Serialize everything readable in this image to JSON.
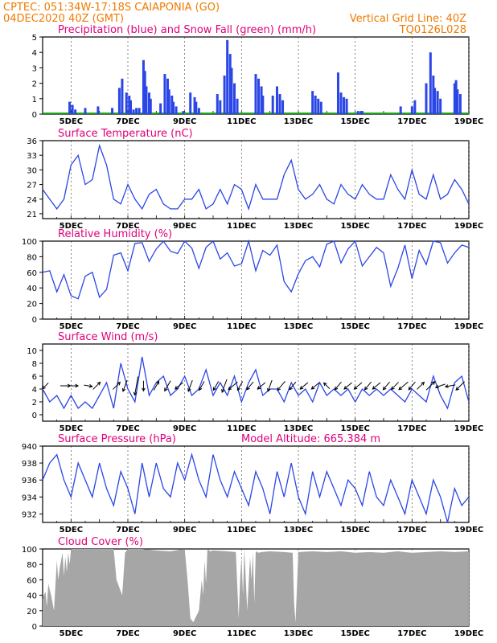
{
  "header": {
    "line1": "CPTEC:   051:34W-17:18S   CAIAPONIA (GO)",
    "line2_left": "04DEC2020 40Z (GMT)",
    "line2_right": "Vertical Grid Line: 40Z",
    "code": "TQ0126L028"
  },
  "colors": {
    "header": "#f07a00",
    "title": "#e0007a",
    "line": "#2b46e6",
    "precip": "#2b46e6",
    "snow": "#1aa81a",
    "cloud": "#a6a6a6",
    "wind": "#000000"
  },
  "x_labels": [
    "5DEC",
    "7DEC",
    "9DEC",
    "11DEC",
    "13DEC",
    "15DEC",
    "17DEC",
    "19DEC"
  ],
  "chart_data": [
    {
      "id": "precip",
      "type": "bar",
      "title": "Precipitation (blue) and Snow Fall (green) (mm/h)",
      "ylim": [
        0,
        5
      ],
      "yticks": [
        0,
        1,
        2,
        3,
        4,
        5
      ],
      "x_days": [
        4.95,
        5.05,
        5.15,
        5.5,
        5.95,
        6.45,
        6.7,
        6.8,
        6.95,
        7.05,
        7.1,
        7.2,
        7.3,
        7.4,
        7.55,
        7.6,
        7.65,
        7.75,
        7.8,
        8.15,
        8.3,
        8.4,
        8.45,
        8.55,
        8.6,
        8.7,
        8.95,
        9.2,
        9.35,
        9.4,
        9.5,
        10.15,
        10.25,
        10.4,
        10.5,
        10.6,
        10.65,
        10.75,
        10.85,
        11.5,
        11.6,
        11.7,
        11.75,
        12.1,
        12.25,
        12.35,
        12.45,
        13.5,
        13.6,
        13.7,
        13.8,
        14.4,
        14.5,
        14.6,
        14.7,
        15.1,
        15.2,
        15.25,
        16.6,
        17.0,
        17.1,
        17.5,
        17.65,
        17.75,
        17.8,
        17.9,
        18.0,
        18.5,
        18.55,
        18.6,
        18.7
      ],
      "values": [
        0.8,
        0.6,
        0.3,
        0.4,
        0.5,
        0.4,
        1.7,
        2.3,
        1.4,
        1.2,
        0.9,
        0.3,
        0.4,
        0.4,
        3.5,
        2.8,
        1.8,
        1.4,
        1.0,
        0.7,
        2.6,
        2.3,
        1.6,
        1.2,
        0.8,
        0.5,
        0.2,
        1.4,
        1.1,
        0.8,
        0.4,
        1.3,
        0.9,
        2.5,
        4.8,
        3.9,
        3.0,
        2.0,
        1.0,
        2.6,
        2.3,
        1.8,
        1.2,
        1.2,
        1.8,
        1.3,
        0.9,
        1.5,
        1.2,
        1.0,
        0.8,
        2.7,
        1.4,
        1.1,
        1.0,
        0.2,
        0.2,
        0.2,
        0.5,
        0.5,
        0.9,
        2.0,
        4.0,
        2.5,
        1.7,
        1.5,
        1.0,
        2.0,
        2.2,
        1.6,
        1.3
      ]
    },
    {
      "id": "temp",
      "type": "line",
      "title": "Surface Temperature (nC)",
      "ylim": [
        20,
        36
      ],
      "yticks": [
        21,
        24,
        27,
        30,
        33,
        36
      ],
      "x_days": [
        4.0,
        4.25,
        4.5,
        4.75,
        5.0,
        5.25,
        5.5,
        5.75,
        6.0,
        6.25,
        6.5,
        6.75,
        7.0,
        7.25,
        7.5,
        7.75,
        8.0,
        8.25,
        8.5,
        8.75,
        9.0,
        9.25,
        9.5,
        9.75,
        10.0,
        10.25,
        10.5,
        10.75,
        11.0,
        11.25,
        11.5,
        11.75,
        12.0,
        12.25,
        12.5,
        12.75,
        13.0,
        13.25,
        13.5,
        13.75,
        14.0,
        14.25,
        14.5,
        14.75,
        15.0,
        15.25,
        15.5,
        15.75,
        16.0,
        16.25,
        16.5,
        16.75,
        17.0,
        17.25,
        17.5,
        17.75,
        18.0,
        18.25,
        18.5,
        18.75,
        19.0
      ],
      "values": [
        26,
        24,
        22,
        24,
        31,
        33,
        27,
        28,
        35,
        31,
        24,
        23,
        27,
        24,
        22,
        25,
        26,
        23,
        22,
        22,
        24,
        24,
        26,
        22,
        23,
        26,
        23,
        27,
        26,
        22,
        27,
        24,
        24,
        24,
        29,
        32,
        26,
        24,
        25,
        27,
        24,
        23,
        27,
        25,
        24,
        27,
        25,
        24,
        24,
        29,
        26,
        24,
        30,
        25,
        24,
        29,
        24,
        25,
        28,
        26,
        23
      ]
    },
    {
      "id": "rh",
      "type": "line",
      "title": "Relative Humidity (%)",
      "ylim": [
        0,
        100
      ],
      "yticks": [
        0,
        20,
        40,
        60,
        80,
        100
      ],
      "x_days": [
        4.0,
        4.25,
        4.5,
        4.75,
        5.0,
        5.25,
        5.5,
        5.75,
        6.0,
        6.25,
        6.5,
        6.75,
        7.0,
        7.25,
        7.5,
        7.75,
        8.0,
        8.25,
        8.5,
        8.75,
        9.0,
        9.25,
        9.5,
        9.75,
        10.0,
        10.25,
        10.5,
        10.75,
        11.0,
        11.25,
        11.5,
        11.75,
        12.0,
        12.25,
        12.5,
        12.75,
        13.0,
        13.25,
        13.5,
        13.75,
        14.0,
        14.25,
        14.5,
        14.75,
        15.0,
        15.25,
        15.5,
        15.75,
        16.0,
        16.25,
        16.5,
        16.75,
        17.0,
        17.25,
        17.5,
        17.75,
        18.0,
        18.25,
        18.5,
        18.75,
        19.0
      ],
      "values": [
        60,
        62,
        35,
        57,
        30,
        26,
        55,
        60,
        28,
        38,
        82,
        85,
        62,
        97,
        98,
        74,
        90,
        100,
        87,
        84,
        100,
        91,
        65,
        92,
        100,
        77,
        85,
        68,
        71,
        100,
        62,
        88,
        82,
        95,
        48,
        35,
        58,
        75,
        80,
        67,
        96,
        100,
        72,
        90,
        100,
        68,
        80,
        92,
        85,
        42,
        65,
        95,
        52,
        88,
        70,
        100,
        98,
        72,
        85,
        95,
        92
      ]
    },
    {
      "id": "wind",
      "type": "line",
      "title": "Surface Wind (m/s)",
      "ylim": [
        -1,
        11
      ],
      "yticks": [
        0,
        2,
        4,
        6,
        8,
        10
      ],
      "x_days": [
        4.0,
        4.25,
        4.5,
        4.75,
        5.0,
        5.25,
        5.5,
        5.75,
        6.0,
        6.25,
        6.5,
        6.75,
        7.0,
        7.25,
        7.5,
        7.75,
        8.0,
        8.25,
        8.5,
        8.75,
        9.0,
        9.25,
        9.5,
        9.75,
        10.0,
        10.25,
        10.5,
        10.75,
        11.0,
        11.25,
        11.5,
        11.75,
        12.0,
        12.25,
        12.5,
        12.75,
        13.0,
        13.25,
        13.5,
        13.75,
        14.0,
        14.25,
        14.5,
        14.75,
        15.0,
        15.25,
        15.5,
        15.75,
        16.0,
        16.25,
        16.5,
        16.75,
        17.0,
        17.25,
        17.5,
        17.75,
        18.0,
        18.25,
        18.5,
        18.75,
        19.0
      ],
      "values": [
        4,
        2,
        3,
        1,
        3,
        1,
        2,
        1,
        3,
        5,
        1,
        8,
        4,
        2,
        9,
        3,
        5,
        6,
        3,
        4,
        6,
        3,
        4,
        7,
        3,
        5,
        3,
        6,
        2,
        5,
        7,
        3,
        4,
        4,
        2,
        5,
        3,
        4,
        2,
        5,
        3,
        4,
        3,
        4,
        2,
        4,
        3,
        4,
        3,
        4,
        3,
        2,
        4,
        3,
        2,
        6,
        3,
        1,
        5,
        6,
        2
      ],
      "arrow_days": [
        4.1,
        4.8,
        5.1,
        5.6,
        5.9,
        6.6,
        6.9,
        7.3,
        7.55,
        8.0,
        8.4,
        8.8,
        9.2,
        9.6,
        10.1,
        10.4,
        10.7,
        10.95,
        11.3,
        11.7,
        12.0,
        12.4,
        12.8,
        13.2,
        13.6,
        14.0,
        14.4,
        14.75,
        15.1,
        15.45,
        15.75,
        16.1,
        16.4,
        16.7,
        17.0,
        17.3,
        17.65,
        18.0,
        18.35,
        18.7
      ],
      "arrow_speed": [
        2,
        3,
        2,
        2,
        3,
        3,
        4,
        8,
        3,
        3,
        4,
        3,
        4,
        3,
        3,
        5,
        4,
        3,
        3,
        3,
        4,
        4,
        3,
        3,
        3,
        2,
        3,
        3,
        3,
        3,
        3,
        3,
        3,
        4,
        3,
        3,
        4,
        3,
        3,
        4
      ],
      "arrow_dir_deg": [
        225,
        90,
        90,
        100,
        45,
        45,
        200,
        190,
        180,
        30,
        210,
        230,
        200,
        210,
        210,
        200,
        230,
        210,
        220,
        230,
        200,
        220,
        220,
        230,
        230,
        315,
        220,
        230,
        230,
        220,
        230,
        220,
        225,
        230,
        220,
        45,
        45,
        250,
        260,
        225
      ]
    },
    {
      "id": "press",
      "type": "line",
      "title": "Surface Pressure (hPa)",
      "subtitle": "Model Altitude: 665.384 m",
      "ylim": [
        931,
        940
      ],
      "yticks": [
        932,
        934,
        936,
        938,
        940
      ],
      "x_days": [
        4.0,
        4.25,
        4.5,
        4.75,
        5.0,
        5.25,
        5.5,
        5.75,
        6.0,
        6.25,
        6.5,
        6.75,
        7.0,
        7.25,
        7.5,
        7.75,
        8.0,
        8.25,
        8.5,
        8.75,
        9.0,
        9.25,
        9.5,
        9.75,
        10.0,
        10.25,
        10.5,
        10.75,
        11.0,
        11.25,
        11.5,
        11.75,
        12.0,
        12.25,
        12.5,
        12.75,
        13.0,
        13.25,
        13.5,
        13.75,
        14.0,
        14.25,
        14.5,
        14.75,
        15.0,
        15.25,
        15.5,
        15.75,
        16.0,
        16.25,
        16.5,
        16.75,
        17.0,
        17.25,
        17.5,
        17.75,
        18.0,
        18.25,
        18.5,
        18.75,
        19.0
      ],
      "values": [
        936,
        938,
        939,
        936,
        934,
        938,
        936,
        934,
        938,
        935,
        933,
        937,
        935,
        932,
        938,
        934,
        938,
        935,
        934,
        938,
        936,
        939,
        936,
        934,
        939,
        936,
        934,
        937,
        935,
        933,
        937,
        935,
        932,
        937,
        934,
        938,
        934,
        932,
        937,
        934,
        937,
        935,
        933,
        936,
        935,
        933,
        937,
        934,
        933,
        936,
        934,
        932,
        936,
        934,
        932,
        936,
        934,
        931,
        935,
        933,
        934
      ]
    },
    {
      "id": "cloud",
      "type": "area",
      "title": "Cloud Cover (%)",
      "ylim": [
        0,
        100
      ],
      "yticks": [
        0,
        20,
        40,
        60,
        80,
        100
      ],
      "x_days": [
        4.0,
        4.1,
        4.15,
        4.2,
        4.3,
        4.4,
        4.5,
        4.55,
        4.6,
        4.7,
        4.75,
        4.8,
        4.85,
        4.9,
        4.95,
        5.0,
        5.5,
        6.0,
        6.5,
        6.6,
        6.75,
        6.8,
        6.9,
        7.0,
        7.5,
        8.0,
        8.5,
        9.0,
        9.1,
        9.2,
        9.3,
        9.5,
        9.6,
        9.65,
        9.7,
        9.75,
        9.8,
        9.9,
        10.0,
        10.5,
        10.8,
        10.9,
        10.95,
        11.0,
        11.05,
        11.1,
        11.2,
        11.3,
        11.35,
        11.4,
        11.45,
        11.5,
        11.6,
        11.7,
        12.0,
        12.5,
        12.8,
        12.85,
        12.9,
        13.0,
        13.5,
        14.0,
        14.5,
        15.0,
        15.5,
        16.0,
        16.5,
        17.0,
        17.5,
        18.0,
        18.5,
        19.0
      ],
      "values": [
        35,
        45,
        25,
        55,
        40,
        20,
        85,
        60,
        75,
        95,
        65,
        90,
        70,
        95,
        80,
        100,
        100,
        100,
        100,
        60,
        45,
        40,
        95,
        100,
        100,
        98,
        97,
        100,
        60,
        10,
        5,
        20,
        60,
        40,
        85,
        55,
        100,
        97,
        98,
        97,
        96,
        10,
        60,
        90,
        40,
        100,
        20,
        90,
        60,
        95,
        30,
        97,
        95,
        96,
        97,
        96,
        95,
        30,
        5,
        96,
        97,
        96,
        97,
        95,
        96,
        95,
        97,
        95,
        96,
        97,
        96,
        97
      ]
    }
  ]
}
